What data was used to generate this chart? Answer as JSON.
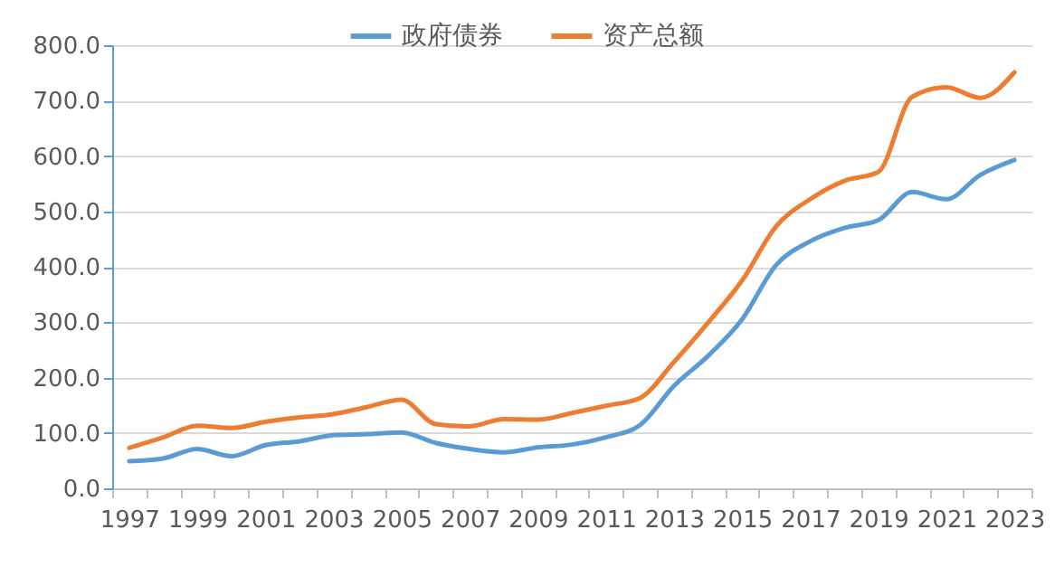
{
  "chart_data": {
    "type": "line",
    "categories": [
      "1997",
      null,
      "1999",
      null,
      "2001",
      null,
      "2003",
      null,
      "2005",
      null,
      "2007",
      null,
      "2009",
      null,
      "2011",
      null,
      "2013",
      null,
      "2015",
      null,
      "2017",
      null,
      "2019",
      null,
      "2021",
      null,
      "2023"
    ],
    "series": [
      {
        "name": "政府债券",
        "color": "#5b9bd5",
        "values": [
          49,
          54,
          71,
          58,
          78,
          85,
          96,
          98,
          101,
          82,
          71,
          65,
          74,
          79,
          92,
          114,
          185,
          239,
          305,
          403,
          446,
          470,
          484,
          535,
          522,
          566,
          593
        ]
      },
      {
        "name": "资产总额",
        "color": "#ed7d31",
        "values": [
          73,
          92,
          113,
          109,
          120,
          128,
          134,
          147,
          160,
          116,
          112,
          125,
          124,
          136,
          149,
          163,
          228,
          299,
          375,
          473,
          522,
          555,
          571,
          707,
          724,
          705,
          751
        ]
      }
    ],
    "ylim": [
      0,
      800
    ],
    "yticks": [
      {
        "value": 0,
        "label": "0.0"
      },
      {
        "value": 100,
        "label": "100.0"
      },
      {
        "value": 200,
        "label": "200.0"
      },
      {
        "value": 300,
        "label": "300.0"
      },
      {
        "value": 400,
        "label": "400.0"
      },
      {
        "value": 500,
        "label": "500.0"
      },
      {
        "value": 600,
        "label": "600.0"
      },
      {
        "value": 700,
        "label": "700.0"
      },
      {
        "value": 800,
        "label": "800.0"
      }
    ],
    "grid": "y",
    "legend": "top",
    "marker": "none",
    "line_style": "solid"
  }
}
